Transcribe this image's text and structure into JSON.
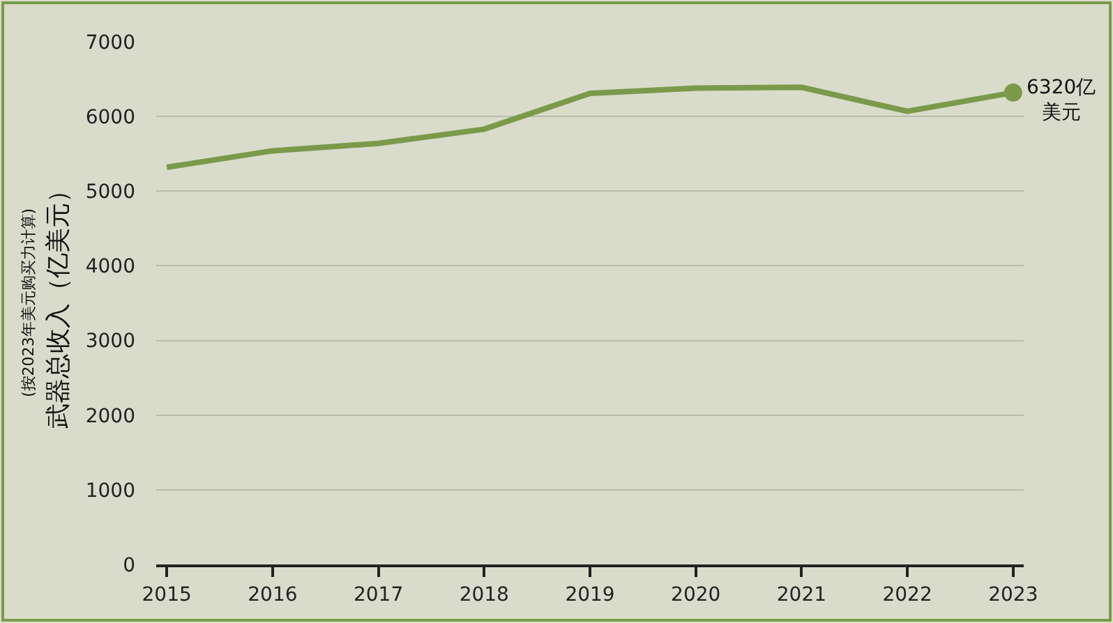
{
  "chart_data": {
    "type": "line",
    "ylabel": "武器总收入（亿美元）",
    "categories": [
      "2015",
      "2016",
      "2017",
      "2018",
      "2019",
      "2020",
      "2021",
      "2022",
      "2023"
    ],
    "series": [
      {
        "color": "#7a9a4a",
        "values": [
          5320,
          5540,
          5640,
          5830,
          6310,
          6380,
          6390,
          6070,
          6320
        ]
      }
    ],
    "ylim": [
      0,
      7000
    ],
    "yticks": [
      0,
      1000,
      2000,
      3000,
      4000,
      5000,
      6000,
      7000
    ],
    "grid": "y",
    "marker": "none",
    "line_style": "solid",
    "legend": false,
    "annotations": [
      "(按2023年美元购买力计算)",
      {
        "text": "6320亿美元",
        "x": "2023",
        "y": 6320
      }
    ]
  }
}
